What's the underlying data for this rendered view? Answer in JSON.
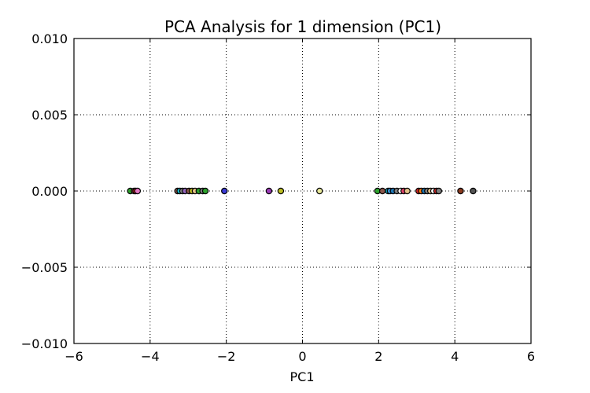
{
  "chart_data": {
    "type": "scatter",
    "title": "PCA Analysis for 1 dimension (PC1)",
    "xlabel": "PC1",
    "ylabel": "",
    "xlim": [
      -6,
      6
    ],
    "ylim": [
      -0.01,
      0.01
    ],
    "xticks": [
      -6,
      -4,
      -2,
      0,
      2,
      4,
      6
    ],
    "xtick_labels": [
      "−6",
      "−4",
      "−2",
      "0",
      "2",
      "4",
      "6"
    ],
    "yticks": [
      -0.01,
      -0.005,
      0.0,
      0.005,
      0.01
    ],
    "ytick_labels": [
      "−0.010",
      "−0.005",
      "0.000",
      "0.005",
      "0.010"
    ],
    "grid": true,
    "points": [
      {
        "x": -4.52,
        "y": 0,
        "color": "#2ca02c"
      },
      {
        "x": -4.42,
        "y": 0,
        "color": "#8c564b"
      },
      {
        "x": -4.38,
        "y": 0,
        "color": "#d62728"
      },
      {
        "x": -4.33,
        "y": 0,
        "color": "#e377c2"
      },
      {
        "x": -3.28,
        "y": 0,
        "color": "#8c564b"
      },
      {
        "x": -3.22,
        "y": 0,
        "color": "#17becf"
      },
      {
        "x": -3.15,
        "y": 0,
        "color": "#7f7f7f"
      },
      {
        "x": -3.08,
        "y": 0,
        "color": "#9467bd"
      },
      {
        "x": -2.98,
        "y": 0,
        "color": "#8c564b"
      },
      {
        "x": -2.9,
        "y": 0,
        "color": "#bcbd22"
      },
      {
        "x": -2.82,
        "y": 0,
        "color": "#e3c28a"
      },
      {
        "x": -2.72,
        "y": 0,
        "color": "#2ca02c"
      },
      {
        "x": -2.62,
        "y": 0,
        "color": "#7f7f7f"
      },
      {
        "x": -2.55,
        "y": 0,
        "color": "#2ca02c"
      },
      {
        "x": -2.05,
        "y": 0,
        "color": "#3b3bd6"
      },
      {
        "x": -0.88,
        "y": 0,
        "color": "#9c3cb8"
      },
      {
        "x": -0.57,
        "y": 0,
        "color": "#bcbd22"
      },
      {
        "x": 0.45,
        "y": 0,
        "color": "#e8e89a"
      },
      {
        "x": 1.97,
        "y": 0,
        "color": "#2ca02c"
      },
      {
        "x": 2.1,
        "y": 0,
        "color": "#8c564b"
      },
      {
        "x": 2.25,
        "y": 0,
        "color": "#17becf"
      },
      {
        "x": 2.3,
        "y": 0,
        "color": "#3b8fd6"
      },
      {
        "x": 2.38,
        "y": 0,
        "color": "#1f77b4"
      },
      {
        "x": 2.48,
        "y": 0,
        "color": "#7f7f7f"
      },
      {
        "x": 2.58,
        "y": 0,
        "color": "#ffffff"
      },
      {
        "x": 2.66,
        "y": 0,
        "color": "#e3446a"
      },
      {
        "x": 2.75,
        "y": 0,
        "color": "#e3c28a"
      },
      {
        "x": 3.05,
        "y": 0,
        "color": "#d62728"
      },
      {
        "x": 3.12,
        "y": 0,
        "color": "#ff7f0e"
      },
      {
        "x": 3.2,
        "y": 0,
        "color": "#1f77b4"
      },
      {
        "x": 3.28,
        "y": 0,
        "color": "#7f7f7f"
      },
      {
        "x": 3.36,
        "y": 0,
        "color": "#e3c28a"
      },
      {
        "x": 3.44,
        "y": 0,
        "color": "#ffffff"
      },
      {
        "x": 3.52,
        "y": 0,
        "color": "#d62728"
      },
      {
        "x": 3.58,
        "y": 0,
        "color": "#7f7f7f"
      },
      {
        "x": 4.15,
        "y": 0,
        "color": "#8c3a1e"
      },
      {
        "x": 4.48,
        "y": 0,
        "color": "#555555"
      }
    ]
  }
}
